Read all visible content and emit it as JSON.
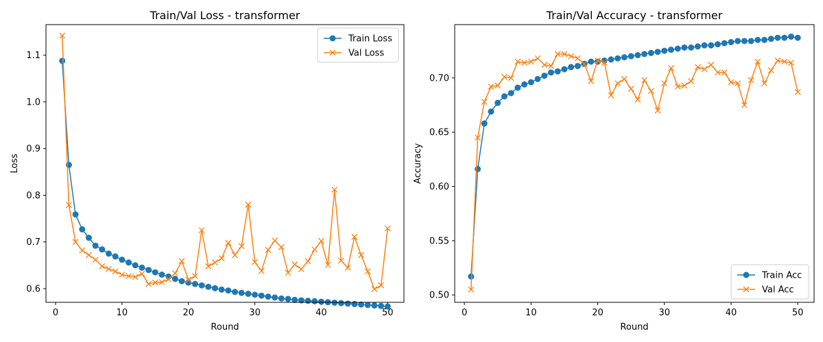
{
  "chart_data": [
    {
      "type": "line",
      "title": "Train/Val Loss - transformer",
      "xlabel": "Round",
      "ylabel": "Loss",
      "xlim": [
        -1.45,
        52.45
      ],
      "ylim": [
        0.5707,
        1.1655
      ],
      "xticks": [
        0,
        10,
        20,
        30,
        40,
        50
      ],
      "xtick_labels": [
        "0",
        "10",
        "20",
        "30",
        "40",
        "50"
      ],
      "yticks": [
        0.6,
        0.7,
        0.8,
        0.9,
        1.0,
        1.1
      ],
      "ytick_labels": [
        "0.6",
        "0.7",
        "0.8",
        "0.9",
        "1.0",
        "1.1"
      ],
      "grid": false,
      "legend_position": "top-right",
      "x": [
        1,
        2,
        3,
        4,
        5,
        6,
        7,
        8,
        9,
        10,
        11,
        12,
        13,
        14,
        15,
        16,
        17,
        18,
        19,
        20,
        21,
        22,
        23,
        24,
        25,
        26,
        27,
        28,
        29,
        30,
        31,
        32,
        33,
        34,
        35,
        36,
        37,
        38,
        39,
        40,
        41,
        42,
        43,
        44,
        45,
        46,
        47,
        48,
        49,
        50
      ],
      "series": [
        {
          "name": "Train Loss",
          "marker": "circle",
          "color": "#1f77b4",
          "values": [
            1.088,
            0.865,
            0.759,
            0.727,
            0.709,
            0.692,
            0.684,
            0.675,
            0.669,
            0.662,
            0.656,
            0.65,
            0.645,
            0.64,
            0.635,
            0.63,
            0.626,
            0.621,
            0.616,
            0.613,
            0.61,
            0.607,
            0.604,
            0.601,
            0.598,
            0.596,
            0.593,
            0.591,
            0.589,
            0.587,
            0.585,
            0.583,
            0.581,
            0.579,
            0.578,
            0.576,
            0.575,
            0.574,
            0.573,
            0.572,
            0.571,
            0.57,
            0.569,
            0.568,
            0.567,
            0.566,
            0.565,
            0.564,
            0.563,
            0.562
          ]
        },
        {
          "name": "Val Loss",
          "marker": "x",
          "color": "#ff7f0e",
          "values": [
            1.142,
            0.779,
            0.7,
            0.682,
            0.672,
            0.662,
            0.648,
            0.642,
            0.637,
            0.63,
            0.627,
            0.625,
            0.632,
            0.61,
            0.613,
            0.614,
            0.62,
            0.633,
            0.659,
            0.619,
            0.627,
            0.725,
            0.648,
            0.656,
            0.665,
            0.698,
            0.672,
            0.691,
            0.78,
            0.657,
            0.638,
            0.683,
            0.703,
            0.689,
            0.634,
            0.652,
            0.642,
            0.659,
            0.684,
            0.702,
            0.651,
            0.812,
            0.66,
            0.645,
            0.711,
            0.672,
            0.637,
            0.599,
            0.607,
            0.729
          ]
        }
      ]
    },
    {
      "type": "line",
      "title": "Train/Val Accuracy - transformer",
      "xlabel": "Round",
      "ylabel": "Accuracy",
      "xlim": [
        -1.45,
        52.45
      ],
      "ylim": [
        0.4932,
        0.7491
      ],
      "xticks": [
        0,
        10,
        20,
        30,
        40,
        50
      ],
      "xtick_labels": [
        "0",
        "10",
        "20",
        "30",
        "40",
        "50"
      ],
      "yticks": [
        0.5,
        0.55,
        0.6,
        0.65,
        0.7
      ],
      "ytick_labels": [
        "0.50",
        "0.55",
        "0.60",
        "0.65",
        "0.70"
      ],
      "grid": false,
      "legend_position": "bottom-right",
      "x": [
        1,
        2,
        3,
        4,
        5,
        6,
        7,
        8,
        9,
        10,
        11,
        12,
        13,
        14,
        15,
        16,
        17,
        18,
        19,
        20,
        21,
        22,
        23,
        24,
        25,
        26,
        27,
        28,
        29,
        30,
        31,
        32,
        33,
        34,
        35,
        36,
        37,
        38,
        39,
        40,
        41,
        42,
        43,
        44,
        45,
        46,
        47,
        48,
        49,
        50
      ],
      "series": [
        {
          "name": "Train Acc",
          "marker": "circle",
          "color": "#1f77b4",
          "values": [
            0.517,
            0.616,
            0.658,
            0.669,
            0.677,
            0.683,
            0.686,
            0.691,
            0.694,
            0.696,
            0.699,
            0.702,
            0.705,
            0.706,
            0.708,
            0.71,
            0.711,
            0.713,
            0.715,
            0.715,
            0.716,
            0.717,
            0.718,
            0.719,
            0.72,
            0.721,
            0.722,
            0.723,
            0.724,
            0.725,
            0.726,
            0.727,
            0.728,
            0.728,
            0.729,
            0.73,
            0.73,
            0.731,
            0.732,
            0.733,
            0.734,
            0.734,
            0.734,
            0.735,
            0.735,
            0.736,
            0.737,
            0.737,
            0.738,
            0.737
          ]
        },
        {
          "name": "Val Acc",
          "marker": "x",
          "color": "#ff7f0e",
          "values": [
            0.505,
            0.645,
            0.678,
            0.692,
            0.693,
            0.701,
            0.7,
            0.715,
            0.714,
            0.715,
            0.718,
            0.712,
            0.711,
            0.722,
            0.722,
            0.72,
            0.718,
            0.713,
            0.697,
            0.716,
            0.714,
            0.684,
            0.695,
            0.699,
            0.69,
            0.68,
            0.698,
            0.688,
            0.67,
            0.695,
            0.709,
            0.692,
            0.693,
            0.697,
            0.71,
            0.708,
            0.712,
            0.705,
            0.705,
            0.696,
            0.695,
            0.675,
            0.698,
            0.715,
            0.695,
            0.707,
            0.716,
            0.715,
            0.714,
            0.687
          ]
        }
      ]
    }
  ]
}
